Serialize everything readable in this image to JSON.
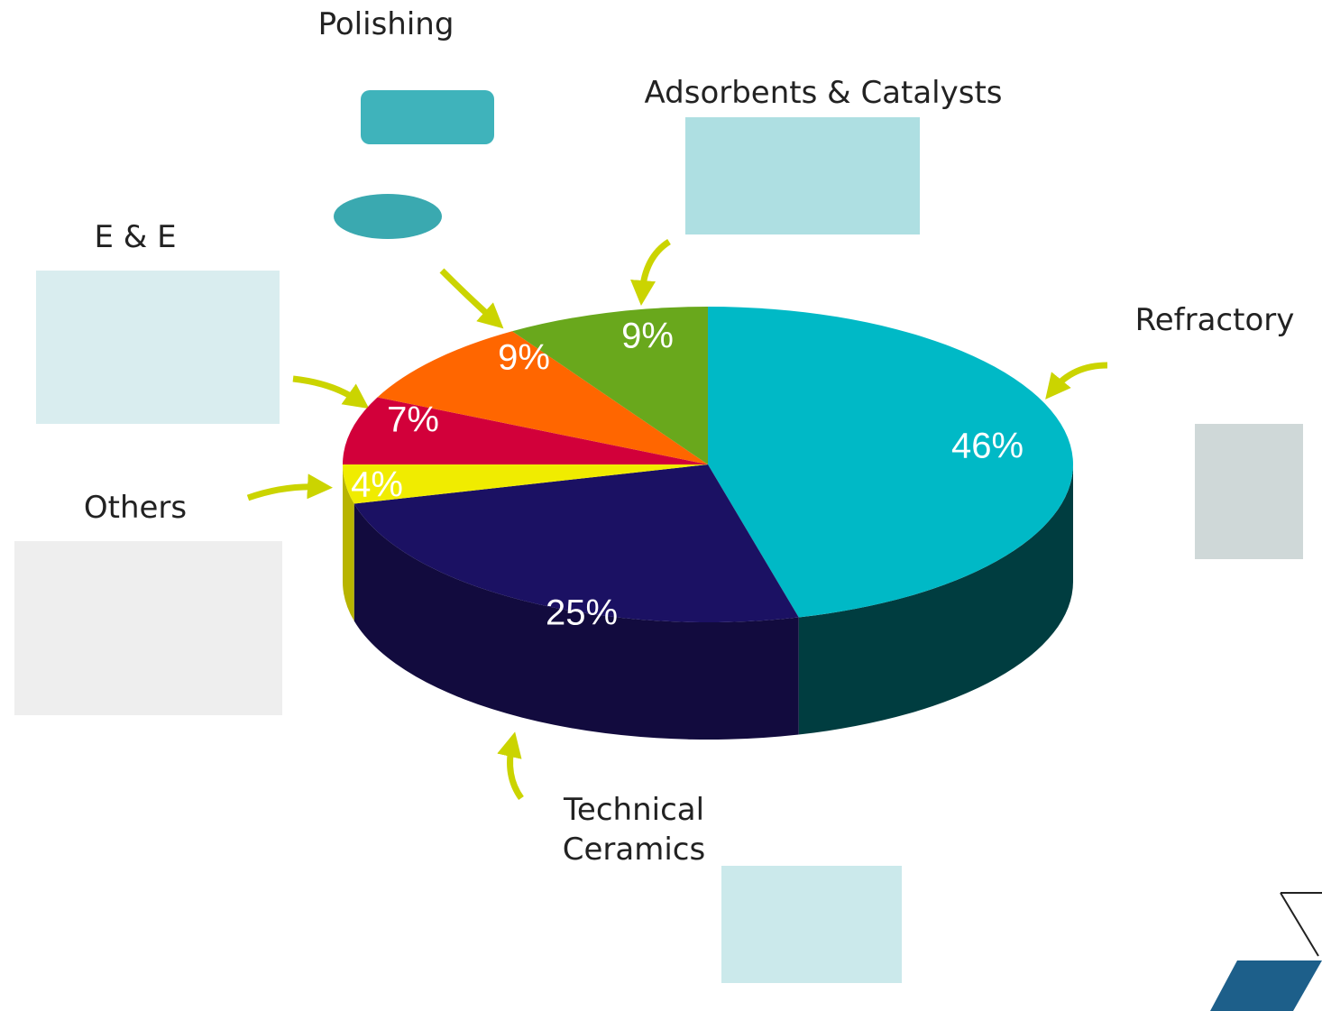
{
  "chart_data": {
    "type": "pie",
    "categories": [
      "Refractory",
      "Technical Ceramics",
      "Others",
      "E & E",
      "Polishing",
      "Adsorbents & Catalysts"
    ],
    "values": [
      46,
      25,
      4,
      7,
      9,
      9
    ],
    "value_labels": [
      "46%",
      "25%",
      "4%",
      "7%",
      "9%",
      "9%"
    ],
    "colors": [
      "#00b9c6",
      "#1b1163",
      "#f0ec00",
      "#d2003a",
      "#ff6600",
      "#69a81c"
    ],
    "side_colors": [
      "#003d40",
      "#120b3e",
      "#b8b400",
      "#900028",
      "#b04600",
      "#487414"
    ]
  }
}
